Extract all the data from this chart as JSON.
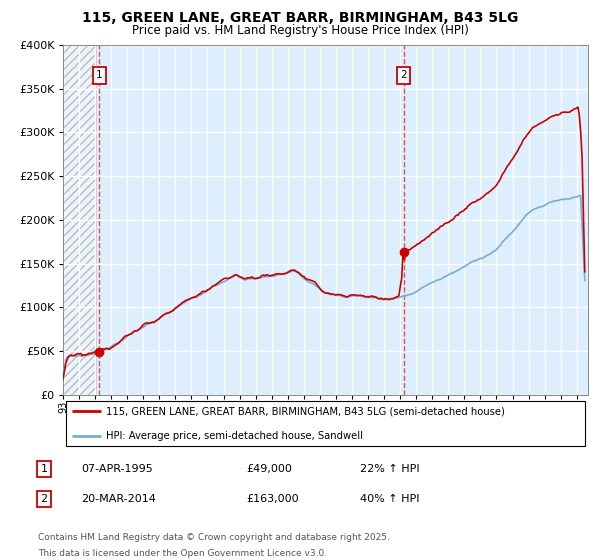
{
  "title_line1": "115, GREEN LANE, GREAT BARR, BIRMINGHAM, B43 5LG",
  "title_line2": "Price paid vs. HM Land Registry's House Price Index (HPI)",
  "title_fontsize": 10,
  "subtitle_fontsize": 9,
  "ylim": [
    0,
    400000
  ],
  "ytick_vals": [
    0,
    50000,
    100000,
    150000,
    200000,
    250000,
    300000,
    350000,
    400000
  ],
  "sale1_year": 1995.27,
  "sale1_price": 49000,
  "sale2_year": 2014.22,
  "sale2_price": 163000,
  "legend_line1": "115, GREEN LANE, GREAT BARR, BIRMINGHAM, B43 5LG (semi-detached house)",
  "legend_line2": "HPI: Average price, semi-detached house, Sandwell",
  "annot1_num": "1",
  "annot1_date": "07-APR-1995",
  "annot1_price": "£49,000",
  "annot1_hpi": "22% ↑ HPI",
  "annot2_num": "2",
  "annot2_date": "20-MAR-2014",
  "annot2_price": "£163,000",
  "annot2_hpi": "40% ↑ HPI",
  "footnote_line1": "Contains HM Land Registry data © Crown copyright and database right 2025.",
  "footnote_line2": "This data is licensed under the Open Government Licence v3.0.",
  "red_color": "#cc0000",
  "blue_color": "#7aadcc",
  "bg_color": "#ddeeff",
  "grid_color": "#ffffff",
  "dashed_color": "#dd5555",
  "hatch_color": "#bbbbbb"
}
